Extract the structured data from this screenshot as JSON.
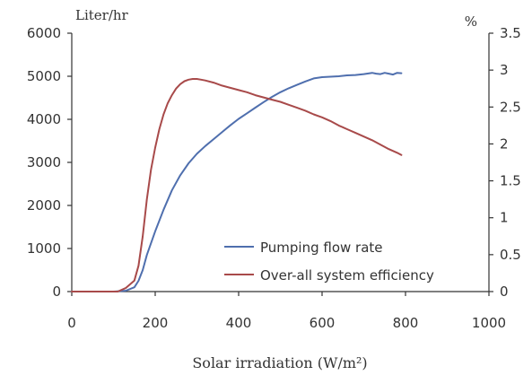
{
  "chart_data": {
    "type": "line",
    "xlabel": "Solar irradiation (W/m²)",
    "ylabel_left": "Liter/hr",
    "ylabel_right": "%",
    "xlim": [
      0,
      1000
    ],
    "ylim_left": [
      0,
      6000
    ],
    "ylim_right": [
      0,
      3.5
    ],
    "x_ticks": [
      0,
      200,
      400,
      600,
      800,
      1000
    ],
    "y_left_ticks": [
      0,
      1000,
      2000,
      3000,
      4000,
      5000,
      6000
    ],
    "y_right_ticks": [
      0,
      0.5,
      1,
      1.5,
      2,
      2.5,
      3,
      3.5
    ],
    "y_right_tick_labels": [
      "0",
      "0.5",
      "1",
      "1.5",
      "2",
      "2.5",
      "3",
      "3.5"
    ],
    "grid": false,
    "legend_position": "bottom-right",
    "series": [
      {
        "name": "Pumping flow rate",
        "axis": "left",
        "color": "#4f6fae",
        "x": [
          0,
          100,
          130,
          150,
          160,
          170,
          180,
          200,
          220,
          240,
          260,
          280,
          300,
          320,
          340,
          360,
          380,
          400,
          420,
          440,
          460,
          480,
          500,
          520,
          540,
          560,
          580,
          600,
          620,
          640,
          660,
          680,
          700,
          720,
          730,
          740,
          750,
          760,
          770,
          780,
          790
        ],
        "values": [
          0,
          0,
          20,
          100,
          250,
          500,
          850,
          1400,
          1900,
          2350,
          2700,
          2980,
          3200,
          3380,
          3540,
          3700,
          3860,
          4010,
          4140,
          4270,
          4400,
          4520,
          4630,
          4720,
          4800,
          4880,
          4950,
          4980,
          4990,
          5000,
          5020,
          5030,
          5050,
          5080,
          5060,
          5050,
          5080,
          5060,
          5040,
          5080,
          5070
        ]
      },
      {
        "name": "Over-all system efficiency",
        "axis": "right",
        "color": "#a84a4a",
        "x": [
          0,
          110,
          130,
          150,
          160,
          170,
          180,
          190,
          200,
          210,
          220,
          230,
          240,
          250,
          260,
          270,
          280,
          290,
          300,
          310,
          320,
          340,
          360,
          380,
          400,
          420,
          440,
          460,
          480,
          500,
          520,
          540,
          560,
          580,
          600,
          620,
          640,
          660,
          680,
          700,
          720,
          740,
          760,
          780,
          790
        ],
        "values": [
          0,
          0,
          0.05,
          0.15,
          0.35,
          0.75,
          1.25,
          1.65,
          1.95,
          2.2,
          2.4,
          2.55,
          2.66,
          2.75,
          2.81,
          2.85,
          2.87,
          2.88,
          2.88,
          2.87,
          2.86,
          2.83,
          2.79,
          2.76,
          2.73,
          2.7,
          2.66,
          2.63,
          2.6,
          2.57,
          2.53,
          2.49,
          2.45,
          2.4,
          2.36,
          2.31,
          2.25,
          2.2,
          2.15,
          2.1,
          2.05,
          1.99,
          1.93,
          1.88,
          1.85
        ]
      }
    ]
  }
}
